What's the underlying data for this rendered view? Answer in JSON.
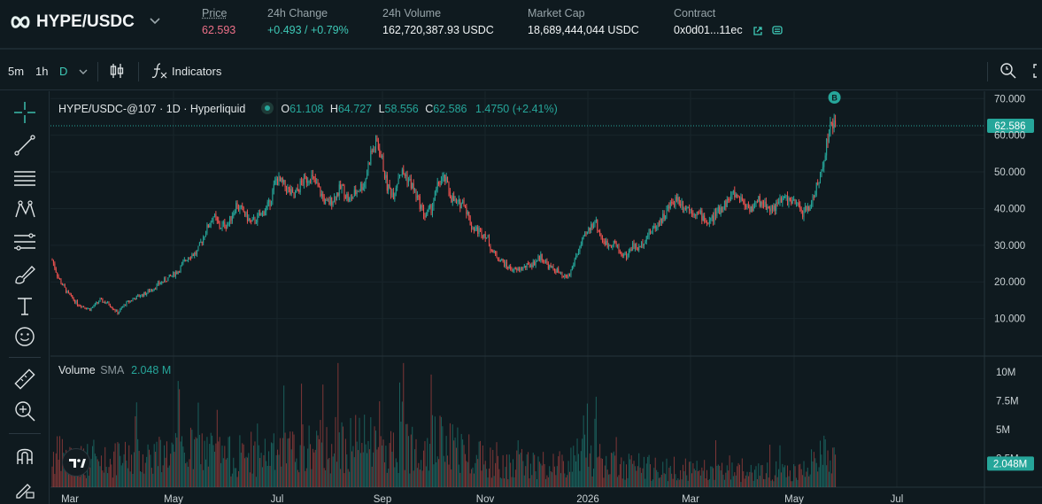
{
  "header": {
    "pair": "HYPE/USDC",
    "price_label": "Price",
    "price_value": "62.593",
    "change_label": "24h Change",
    "change_value": "+0.493 / +0.79%",
    "volume_label": "24h Volume",
    "volume_value": "162,720,387.93 USDC",
    "mcap_label": "Market Cap",
    "mcap_value": "18,689,444,044 USDC",
    "contract_label": "Contract",
    "contract_value": "0x0d01...11ec"
  },
  "toolbar": {
    "interval_5m": "5m",
    "interval_1h": "1h",
    "interval_d": "D",
    "indicators_label": "Indicators"
  },
  "legend": {
    "title": "HYPE/USDC-@107 · 1D · Hyperliquid",
    "o_key": "O",
    "o_val": "61.108",
    "h_key": "H",
    "h_val": "64.727",
    "l_key": "L",
    "l_val": "58.556",
    "c_key": "C",
    "c_val": "62.586",
    "change": "1.4750 (+2.41%)"
  },
  "volume_legend": {
    "label": "Volume",
    "sma_label": "SMA",
    "sma_value": "2.048 M"
  },
  "colors": {
    "up": "#26a69a",
    "down": "#ef5350",
    "accent": "#3ec9b7",
    "price_down": "#ed7088"
  },
  "chart_data": {
    "type": "candlestick",
    "title": "HYPE/USDC-@107 · 1D · Hyperliquid",
    "x_tick_labels": [
      "Mar",
      "May",
      "Jul",
      "Sep",
      "Nov",
      "2026",
      "Mar",
      "May",
      "Jul"
    ],
    "y_tick_labels": [
      "70.000",
      "60.000",
      "50.000",
      "40.000",
      "30.000",
      "20.000",
      "10.000"
    ],
    "ylim": [
      0,
      72
    ],
    "current_price_label": "62.586",
    "current_price": 62.586,
    "marker_label": "B",
    "volume": {
      "tick_labels": [
        "10M",
        "7.5M",
        "5M",
        "2.5M"
      ],
      "ylim": [
        0,
        11000000
      ],
      "sma_label": "2.048M",
      "sma": 2048000
    },
    "close_path": [
      [
        0,
        26
      ],
      [
        5,
        21
      ],
      [
        12,
        17
      ],
      [
        20,
        14
      ],
      [
        30,
        12.5
      ],
      [
        38,
        15
      ],
      [
        45,
        14
      ],
      [
        52,
        11.5
      ],
      [
        58,
        14
      ],
      [
        65,
        15.5
      ],
      [
        75,
        17
      ],
      [
        85,
        19.5
      ],
      [
        92,
        21
      ],
      [
        100,
        23
      ],
      [
        108,
        27
      ],
      [
        115,
        28
      ],
      [
        122,
        34
      ],
      [
        128,
        38
      ],
      [
        133,
        35
      ],
      [
        140,
        36
      ],
      [
        146,
        41
      ],
      [
        152,
        39
      ],
      [
        158,
        36
      ],
      [
        165,
        38
      ],
      [
        172,
        41
      ],
      [
        178,
        48
      ],
      [
        185,
        46
      ],
      [
        192,
        43
      ],
      [
        198,
        47
      ],
      [
        205,
        49
      ],
      [
        212,
        45
      ],
      [
        218,
        41
      ],
      [
        224,
        43
      ],
      [
        230,
        46
      ],
      [
        236,
        42
      ],
      [
        242,
        45
      ],
      [
        248,
        47
      ],
      [
        253,
        55
      ],
      [
        258,
        58
      ],
      [
        262,
        53
      ],
      [
        266,
        46
      ],
      [
        271,
        44
      ],
      [
        276,
        50
      ],
      [
        281,
        49
      ],
      [
        286,
        46
      ],
      [
        291,
        42
      ],
      [
        296,
        38
      ],
      [
        301,
        40
      ],
      [
        307,
        47
      ],
      [
        312,
        48
      ],
      [
        317,
        43
      ],
      [
        322,
        41
      ],
      [
        327,
        42
      ],
      [
        333,
        35
      ],
      [
        338,
        34
      ],
      [
        344,
        33
      ],
      [
        350,
        28
      ],
      [
        356,
        26
      ],
      [
        362,
        24
      ],
      [
        368,
        23
      ],
      [
        375,
        24
      ],
      [
        382,
        25
      ],
      [
        388,
        27
      ],
      [
        395,
        24
      ],
      [
        401,
        23
      ],
      [
        406,
        21
      ],
      [
        411,
        22
      ],
      [
        416,
        27
      ],
      [
        421,
        31
      ],
      [
        426,
        34
      ],
      [
        431,
        37
      ],
      [
        436,
        32
      ],
      [
        441,
        30
      ],
      [
        446,
        31
      ],
      [
        451,
        28
      ],
      [
        456,
        27
      ],
      [
        461,
        30
      ],
      [
        466,
        29
      ],
      [
        471,
        32
      ],
      [
        476,
        34
      ],
      [
        481,
        36
      ],
      [
        486,
        38
      ],
      [
        491,
        41
      ],
      [
        496,
        43
      ],
      [
        501,
        41
      ],
      [
        506,
        40
      ],
      [
        511,
        39
      ],
      [
        516,
        38
      ],
      [
        521,
        36
      ],
      [
        526,
        38
      ],
      [
        531,
        40
      ],
      [
        536,
        42
      ],
      [
        541,
        44
      ],
      [
        546,
        43
      ],
      [
        551,
        41
      ],
      [
        556,
        40
      ],
      [
        561,
        42
      ],
      [
        566,
        41
      ],
      [
        571,
        40
      ],
      [
        576,
        41
      ],
      [
        581,
        43
      ],
      [
        586,
        42
      ],
      [
        591,
        41
      ],
      [
        596,
        39
      ],
      [
        601,
        40
      ],
      [
        605,
        44
      ],
      [
        609,
        47
      ],
      [
        612,
        52
      ],
      [
        615,
        58
      ],
      [
        618,
        62
      ],
      [
        620,
        63
      ],
      [
        622,
        62.586
      ]
    ],
    "volume_path": [
      [
        0,
        2.5
      ],
      [
        40,
        2.0
      ],
      [
        80,
        2.6
      ],
      [
        120,
        3.0
      ],
      [
        150,
        2.2
      ],
      [
        200,
        3.0
      ],
      [
        240,
        3.6
      ],
      [
        270,
        3.0
      ],
      [
        300,
        3.8
      ],
      [
        330,
        2.8
      ],
      [
        360,
        2.0
      ],
      [
        400,
        1.6
      ],
      [
        420,
        3.0
      ],
      [
        440,
        1.8
      ],
      [
        480,
        1.5
      ],
      [
        520,
        1.3
      ],
      [
        560,
        1.2
      ],
      [
        600,
        1.4
      ],
      [
        612,
        3.0
      ],
      [
        622,
        2.6
      ]
    ]
  }
}
